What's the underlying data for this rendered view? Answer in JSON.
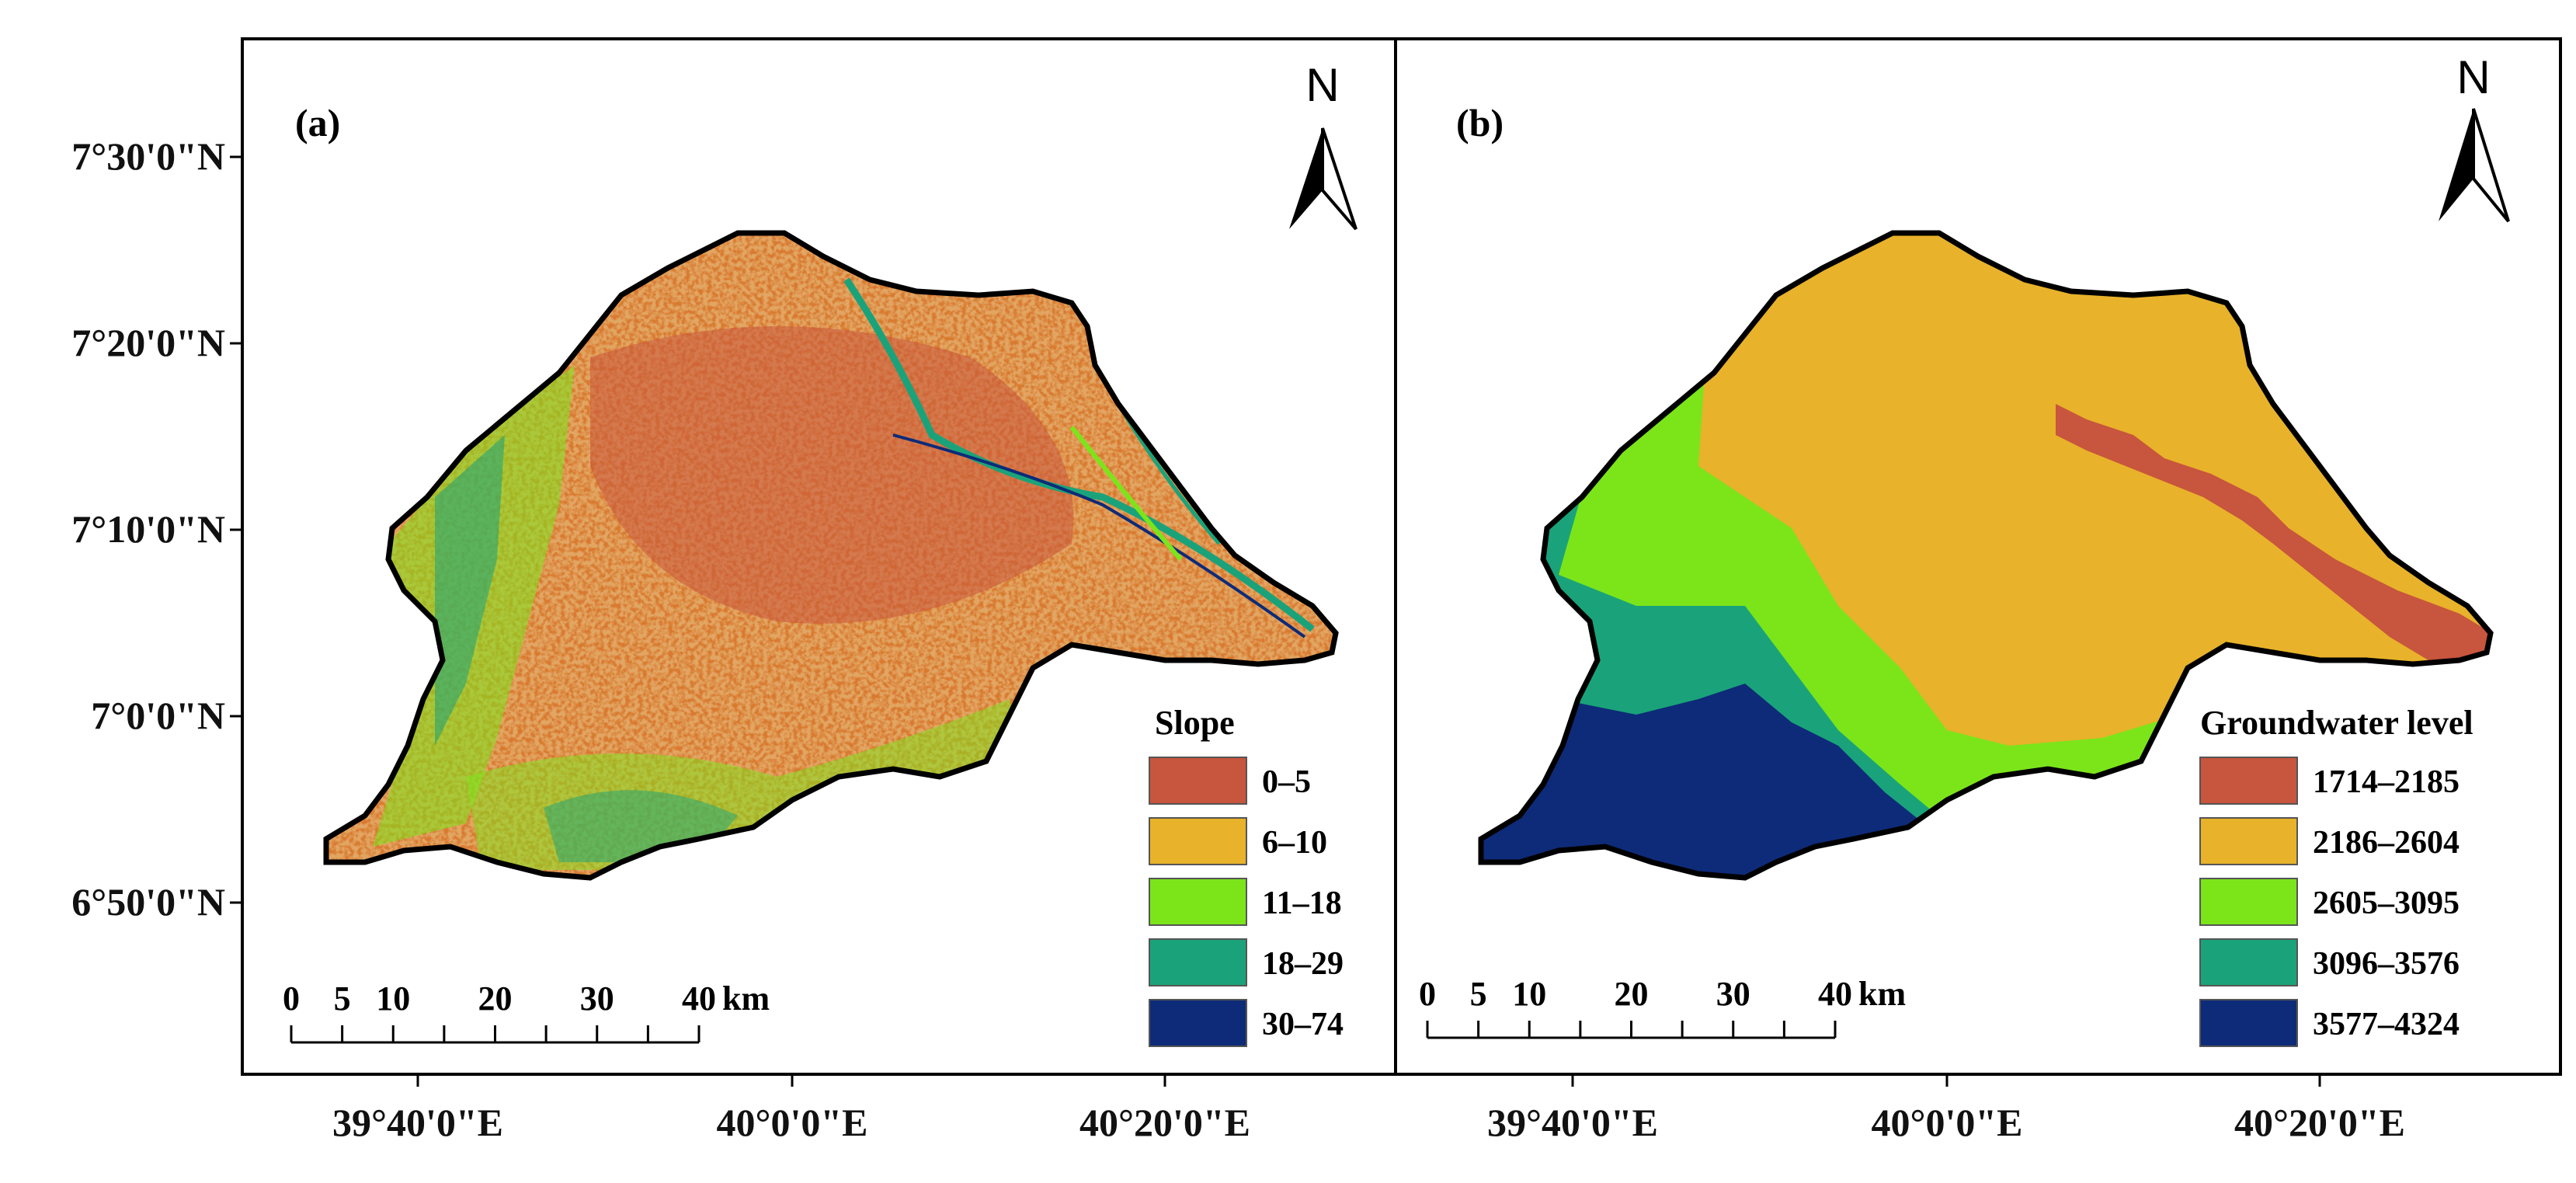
{
  "y_axis_labels": [
    "7°30'0\"N",
    "7°20'0\"N",
    "7°10'0\"N",
    "7°0'0\"N",
    "6°50'0\"N"
  ],
  "x_axis_labels": [
    "39°40'0\"E",
    "40°0'0\"E",
    "40°20'0\"E"
  ],
  "panels": [
    {
      "label": "(a)",
      "north": "N",
      "legend": {
        "title": "Slope",
        "classes": [
          {
            "label": "0–5",
            "color": "#c8553d"
          },
          {
            "label": "6–10",
            "color": "#e8b22a"
          },
          {
            "label": "11–18",
            "color": "#7be51a"
          },
          {
            "label": "18–29",
            "color": "#1aa37a"
          },
          {
            "label": "30–74",
            "color": "#0d2b78"
          }
        ]
      },
      "scale_bar": {
        "ticks": [
          "0",
          "5",
          "10",
          "20",
          "30",
          "40"
        ],
        "unit": "km"
      }
    },
    {
      "label": "(b)",
      "north": "N",
      "legend": {
        "title": "Groundwater level",
        "classes": [
          {
            "label": "1714–2185",
            "color": "#c8553d"
          },
          {
            "label": "2186–2604",
            "color": "#e8b22a"
          },
          {
            "label": "2605–3095",
            "color": "#7be51a"
          },
          {
            "label": "3096–3576",
            "color": "#1aa37a"
          },
          {
            "label": "3577–4324",
            "color": "#0d2b78"
          }
        ]
      },
      "scale_bar": {
        "ticks": [
          "0",
          "5",
          "10",
          "20",
          "30",
          "40"
        ],
        "unit": "km"
      }
    }
  ]
}
